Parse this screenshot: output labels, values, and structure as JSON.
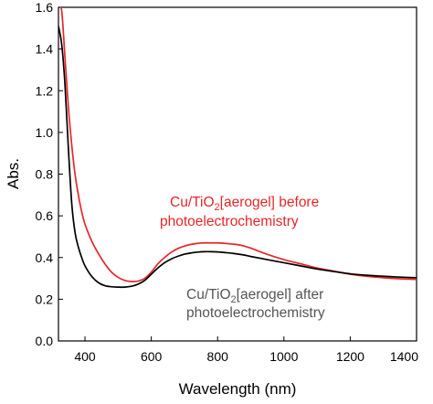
{
  "chart_data": {
    "type": "line",
    "title": "",
    "xlabel": "Wavelength (nm)",
    "ylabel": "Abs.",
    "xlim": [
      320,
      1400
    ],
    "ylim": [
      0.0,
      1.6
    ],
    "x_ticks": [
      400,
      600,
      800,
      1000,
      1200,
      1400
    ],
    "x_tick_labels": [
      "400",
      "600",
      "800",
      "1000",
      "1200",
      "1400"
    ],
    "y_ticks": [
      0.0,
      0.2,
      0.4,
      0.6,
      0.8,
      1.0,
      1.2,
      1.4,
      1.6
    ],
    "y_tick_labels": [
      "0.0",
      "0.2",
      "0.4",
      "0.6",
      "0.8",
      "1.0",
      "1.2",
      "1.4",
      "1.6"
    ],
    "grid": false,
    "legend": "none",
    "series": [
      {
        "color": "#e8262a",
        "x": [
          320,
          330,
          340,
          350,
          360,
          370,
          380,
          390,
          400,
          420,
          440,
          460,
          480,
          500,
          520,
          540,
          560,
          580,
          600,
          620,
          640,
          660,
          680,
          700,
          720,
          740,
          760,
          780,
          800,
          820,
          840,
          860,
          880,
          900,
          950,
          1000,
          1050,
          1100,
          1150,
          1200,
          1250,
          1300,
          1350,
          1400
        ],
        "y": [
          1.62,
          1.58,
          1.35,
          1.12,
          0.94,
          0.8,
          0.7,
          0.62,
          0.56,
          0.48,
          0.42,
          0.37,
          0.33,
          0.305,
          0.29,
          0.285,
          0.287,
          0.3,
          0.33,
          0.37,
          0.4,
          0.425,
          0.443,
          0.455,
          0.463,
          0.468,
          0.47,
          0.47,
          0.47,
          0.468,
          0.465,
          0.462,
          0.455,
          0.445,
          0.415,
          0.39,
          0.37,
          0.35,
          0.335,
          0.32,
          0.31,
          0.303,
          0.298,
          0.295
        ]
      },
      {
        "color": "#000000",
        "x": [
          320,
          330,
          340,
          350,
          360,
          370,
          380,
          390,
          400,
          420,
          440,
          460,
          480,
          500,
          520,
          540,
          560,
          580,
          600,
          620,
          640,
          660,
          680,
          700,
          720,
          740,
          760,
          780,
          800,
          820,
          840,
          860,
          880,
          900,
          950,
          1000,
          1050,
          1100,
          1150,
          1200,
          1250,
          1300,
          1350,
          1400
        ],
        "y": [
          1.51,
          1.42,
          1.22,
          0.92,
          0.66,
          0.52,
          0.45,
          0.4,
          0.36,
          0.31,
          0.28,
          0.265,
          0.26,
          0.258,
          0.258,
          0.262,
          0.272,
          0.29,
          0.32,
          0.35,
          0.375,
          0.393,
          0.406,
          0.416,
          0.422,
          0.426,
          0.428,
          0.428,
          0.427,
          0.424,
          0.421,
          0.417,
          0.412,
          0.405,
          0.39,
          0.375,
          0.36,
          0.345,
          0.333,
          0.322,
          0.315,
          0.31,
          0.306,
          0.303
        ]
      }
    ],
    "annotations": [
      {
        "color": "#e8262a",
        "line1_prefix": "Cu/TiO",
        "line1_sub": "2",
        "line1_suffix": "[aerogel] before",
        "line2": "photoelectrochemistry"
      },
      {
        "color": "#555555",
        "line1_prefix": "Cu/TiO",
        "line1_sub": "2",
        "line1_suffix": "[aerogel] after",
        "line2": "photoelectrochemistry"
      }
    ]
  }
}
